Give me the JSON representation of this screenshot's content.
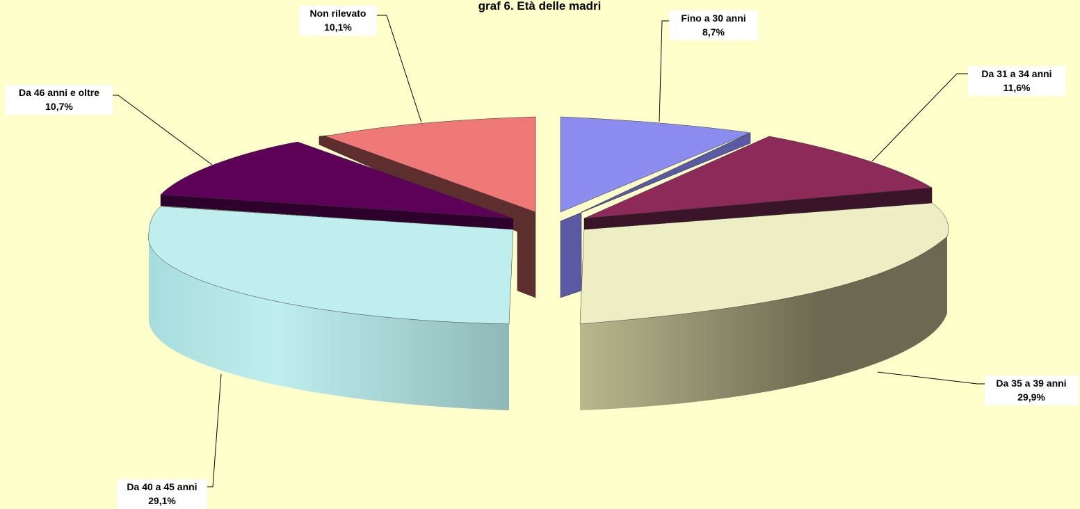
{
  "chart_data": {
    "type": "pie",
    "title": "graf 6. Età delle madri",
    "slices": [
      {
        "label": "Fino a 30 anni",
        "pct_text": "8,7%",
        "value": 8.7,
        "color": "#8C8CEE",
        "side_color": "#5A5AA4"
      },
      {
        "label": "Da 31 a 34 anni",
        "pct_text": "11,6%",
        "value": 11.6,
        "color": "#8E2A5A",
        "side_color": "#3A1428"
      },
      {
        "label": "Da 35 a 39 anni",
        "pct_text": "29,9%",
        "value": 29.9,
        "color": "#EEEEC4",
        "side_color": "#6B6A50"
      },
      {
        "label": "Da 40 a 45 anni",
        "pct_text": "29,1%",
        "value": 29.1,
        "color": "#BEEEEE",
        "side_color": "#9DC4C4"
      },
      {
        "label": "Da 46 anni e oltre",
        "pct_text": "10,7%",
        "value": 10.7,
        "color": "#5C0058",
        "side_color": "#2E002C"
      },
      {
        "label": "Non rilevato",
        "pct_text": "10,1%",
        "value": 10.1,
        "color": "#EE7777",
        "side_color": "#5E2E2E"
      }
    ],
    "legend": "none",
    "labels": "outside with leader lines"
  }
}
